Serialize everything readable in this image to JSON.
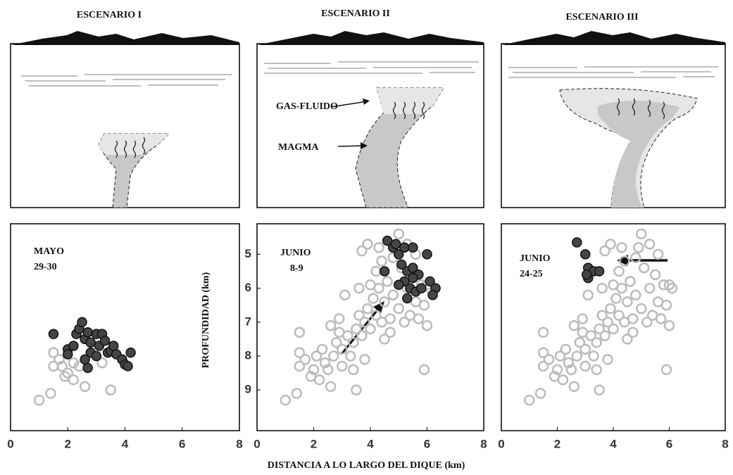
{
  "x_label": "DISTANCIA A LO LARGO DEL DIQUE  (km)",
  "y_label": "PROFUNDIDAD  (km)",
  "diagram_labels": {
    "gas": "GAS-FLUIDO",
    "magma": "MAGMA"
  },
  "chart_data": [
    {
      "type": "scatter",
      "scenario": "ESCENARIO I",
      "label": [
        "MAYO",
        "29-30"
      ],
      "xlim": [
        0,
        8
      ],
      "xticks": [
        0,
        2,
        4,
        6,
        8
      ],
      "ylim": [
        4.1,
        10.2
      ],
      "y_inverted": true,
      "series": [
        {
          "color": "#bbbbbb",
          "filled": false,
          "x": [
            1.5,
            1.5,
            1.7,
            2.0,
            2.2,
            1.9,
            1.0,
            1.4,
            2.6,
            3.5,
            2.2,
            2.4,
            3.2,
            1.8
          ],
          "values": [
            7.9,
            8.3,
            8.1,
            8.5,
            8.7,
            8.6,
            9.3,
            9.1,
            8.9,
            9.0,
            8.2,
            8.3,
            8.2,
            8.3
          ]
        },
        {
          "color": "#454545",
          "filled": true,
          "x": [
            1.5,
            2.0,
            2.0,
            2.2,
            2.3,
            2.4,
            2.5,
            2.6,
            2.7,
            2.8,
            2.6,
            2.7,
            3.0,
            3.2,
            3.1,
            3.3,
            3.4,
            3.5,
            3.6,
            3.7,
            3.9,
            4.0,
            4.1,
            4.2,
            3.0,
            2.8
          ],
          "values": [
            7.35,
            7.8,
            7.95,
            7.7,
            7.35,
            7.2,
            7.0,
            7.5,
            7.3,
            7.9,
            8.1,
            8.35,
            7.35,
            7.35,
            7.7,
            7.55,
            7.9,
            7.85,
            7.7,
            7.95,
            8.1,
            8.25,
            8.3,
            7.9,
            8.0,
            7.6
          ]
        }
      ]
    },
    {
      "type": "scatter",
      "scenario": "ESCENARIO II",
      "label": [
        "JUNIO",
        "8-9"
      ],
      "xlim": [
        0,
        8
      ],
      "xticks": [
        0,
        2,
        4,
        6,
        8
      ],
      "ylim": [
        4.1,
        10.2
      ],
      "y_inverted": true,
      "yticks": [
        5,
        6,
        7,
        8,
        9
      ],
      "series": [
        {
          "color": "#bbbbbb",
          "filled": false,
          "x": [
            1.0,
            1.4,
            1.5,
            1.5,
            1.7,
            1.9,
            2.0,
            2.2,
            2.1,
            2.3,
            2.4,
            2.5,
            2.6,
            2.7,
            2.8,
            2.9,
            3.0,
            3.0,
            3.2,
            3.3,
            3.4,
            3.5,
            3.5,
            3.6,
            3.7,
            3.8,
            3.8,
            3.9,
            4.0,
            4.0,
            4.1,
            4.2,
            4.2,
            4.3,
            4.4,
            4.4,
            4.5,
            4.5,
            4.6,
            4.7,
            4.8,
            4.8,
            4.9,
            5.0,
            5.0,
            5.1,
            5.2,
            5.3,
            5.3,
            5.4,
            5.5,
            5.6,
            5.7,
            5.8,
            5.9,
            5.9,
            6.0,
            6.1,
            3.9,
            3.7,
            2.9,
            3.1,
            2.6,
            1.5,
            3.6,
            4.3,
            5.6,
            6.0,
            4.7,
            3.4
          ],
          "values": [
            9.3,
            9.1,
            7.9,
            8.3,
            8.1,
            8.6,
            8.4,
            8.7,
            8.0,
            7.8,
            8.2,
            8.4,
            8.9,
            8.0,
            7.6,
            7.3,
            7.8,
            8.3,
            7.4,
            8.0,
            7.6,
            9.0,
            7.2,
            6.8,
            7.4,
            7.0,
            8.1,
            6.6,
            7.2,
            5.9,
            6.3,
            6.8,
            5.5,
            6.0,
            7.0,
            5.2,
            6.4,
            7.5,
            5.8,
            6.9,
            5.1,
            6.2,
            4.8,
            4.4,
            6.6,
            5.4,
            7.0,
            6.0,
            4.7,
            6.8,
            5.6,
            6.4,
            6.9,
            5.9,
            6.5,
            8.4,
            7.1,
            6.0,
            4.7,
            4.9,
            6.9,
            6.2,
            7.1,
            7.3,
            6.0,
            4.8,
            5.0,
            5.9,
            7.3,
            8.4
          ]
        },
        {
          "color": "#454545",
          "filled": true,
          "x": [
            4.6,
            4.8,
            5.0,
            5.2,
            4.9,
            5.5,
            6.0,
            4.5,
            5.1,
            5.3,
            5.5,
            5.7,
            5.2,
            5.4,
            5.6,
            5.3,
            5.0,
            5.5,
            6.1,
            6.3,
            6.2,
            5.8
          ],
          "values": [
            4.6,
            4.8,
            5.0,
            4.8,
            4.7,
            4.8,
            5.0,
            5.5,
            5.3,
            5.5,
            5.4,
            5.6,
            5.8,
            6.0,
            6.1,
            6.3,
            5.9,
            5.7,
            5.8,
            6.0,
            6.2,
            6.0
          ]
        }
      ]
    },
    {
      "type": "scatter",
      "scenario": "ESCENARIO III",
      "label": [
        "JUNIO",
        "24-25"
      ],
      "xlim": [
        0,
        8
      ],
      "xticks": [
        0,
        2,
        4,
        6,
        8
      ],
      "ylim": [
        4.1,
        10.2
      ],
      "y_inverted": true,
      "series": [
        {
          "color": "#bbbbbb",
          "filled": false,
          "x": [
            1.0,
            1.4,
            1.5,
            1.5,
            1.7,
            1.9,
            2.0,
            2.2,
            2.1,
            2.3,
            2.4,
            2.5,
            2.6,
            2.7,
            2.8,
            2.9,
            3.0,
            3.0,
            3.2,
            3.3,
            3.4,
            3.5,
            3.5,
            3.6,
            3.7,
            3.8,
            3.8,
            3.9,
            4.0,
            4.0,
            4.1,
            4.2,
            4.2,
            4.3,
            4.4,
            4.4,
            4.5,
            4.5,
            4.6,
            4.7,
            4.8,
            4.8,
            4.9,
            5.0,
            5.0,
            5.1,
            5.2,
            5.3,
            5.3,
            5.4,
            5.5,
            5.6,
            5.7,
            5.8,
            5.9,
            5.9,
            6.0,
            6.1,
            3.9,
            3.7,
            2.9,
            3.1,
            2.6,
            1.5,
            3.6,
            4.3,
            5.6,
            6.0,
            4.7,
            3.4
          ],
          "values": [
            9.3,
            9.1,
            7.9,
            8.3,
            8.1,
            8.6,
            8.4,
            8.7,
            8.0,
            7.8,
            8.2,
            8.4,
            8.9,
            8.0,
            7.6,
            7.3,
            7.8,
            8.3,
            7.4,
            8.0,
            7.6,
            9.0,
            7.2,
            6.8,
            7.4,
            7.0,
            8.1,
            6.6,
            7.2,
            5.9,
            6.3,
            6.8,
            5.5,
            6.0,
            7.0,
            5.2,
            6.4,
            7.5,
            5.8,
            6.9,
            5.1,
            6.2,
            4.8,
            4.4,
            6.6,
            5.4,
            7.0,
            6.0,
            4.7,
            6.8,
            5.6,
            6.4,
            6.9,
            5.9,
            6.5,
            8.4,
            7.1,
            6.0,
            4.7,
            4.9,
            6.9,
            6.2,
            7.1,
            7.3,
            6.0,
            4.8,
            5.0,
            5.9,
            7.3,
            8.4
          ]
        },
        {
          "color": "#454545",
          "filled": true,
          "x": [
            2.7,
            3.0,
            3.1,
            3.1,
            3.3,
            3.5,
            3.05
          ],
          "values": [
            4.65,
            5.0,
            5.4,
            5.7,
            5.5,
            5.5,
            5.6
          ]
        }
      ]
    }
  ]
}
